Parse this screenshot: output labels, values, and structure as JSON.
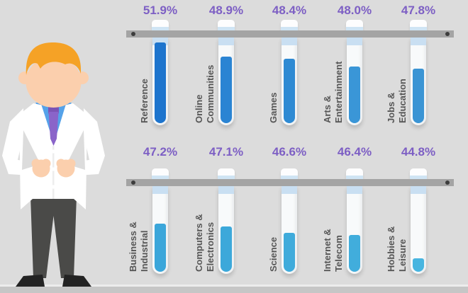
{
  "palette": {
    "background": "#dcdcdc",
    "floor": "#c6c6c6",
    "rack_bar": "#a4a4a4",
    "screw": "#3d3d3d",
    "percent_text": "#7d5fc4",
    "label_text": "#565656",
    "tube_glass": "#f8fafb",
    "tube_top_band": "#c9dff2",
    "cap": "#fdfdfe",
    "cap_band": "#cfe4f4"
  },
  "scientist": {
    "hair": "#f5a226",
    "skin": "#fbcfad",
    "shirt": "#55a2e9",
    "tie": "#8a64c9",
    "tie_knot": "#7b54b5",
    "coat": "#ffffff",
    "pants": "#4a4a48",
    "shoes": "#232323"
  },
  "rows": [
    {
      "items": [
        {
          "label": "Reference",
          "value": "51.9%",
          "fill": 0.97,
          "liquid_color": "#1d74cd"
        },
        {
          "label": "Online\nCommunities",
          "value": "48.9%",
          "fill": 0.8,
          "liquid_color": "#2a84d3"
        },
        {
          "label": "Games",
          "value": "48.4%",
          "fill": 0.77,
          "liquid_color": "#2e8ad3"
        },
        {
          "label": "Arts &\nEntertainment",
          "value": "48.0%",
          "fill": 0.68,
          "liquid_color": "#3a96d7"
        },
        {
          "label": "Jobs &\nEducation",
          "value": "47.8%",
          "fill": 0.65,
          "liquid_color": "#3a94d4"
        }
      ]
    },
    {
      "items": [
        {
          "label": "Business &\nIndustrial",
          "value": "47.2%",
          "fill": 0.58,
          "liquid_color": "#3ba6da"
        },
        {
          "label": "Computers &\nElectronics",
          "value": "47.1%",
          "fill": 0.54,
          "liquid_color": "#3ca8da"
        },
        {
          "label": "Science",
          "value": "46.6%",
          "fill": 0.47,
          "liquid_color": "#3fabdb"
        },
        {
          "label": "Internet &\nTelecom",
          "value": "46.4%",
          "fill": 0.44,
          "liquid_color": "#41addc"
        },
        {
          "label": "Hobbies &\nLeisure",
          "value": "44.8%",
          "fill": 0.16,
          "liquid_color": "#47b5e0"
        }
      ]
    }
  ],
  "chart_data": {
    "type": "bar",
    "categories": [
      "Reference",
      "Online Communities",
      "Games",
      "Arts & Entertainment",
      "Jobs & Education",
      "Business & Industrial",
      "Computers & Electronics",
      "Science",
      "Internet & Telecom",
      "Hobbies & Leisure"
    ],
    "values": [
      51.9,
      48.9,
      48.4,
      48.0,
      47.8,
      47.2,
      47.1,
      46.6,
      46.4,
      44.8
    ],
    "title": "",
    "xlabel": "",
    "ylabel": "",
    "value_unit": "%",
    "layout": "two rows of five test tubes on racks, values shown as purple percentage labels above each tube, category labels rotated 90 degrees beside each tube"
  }
}
